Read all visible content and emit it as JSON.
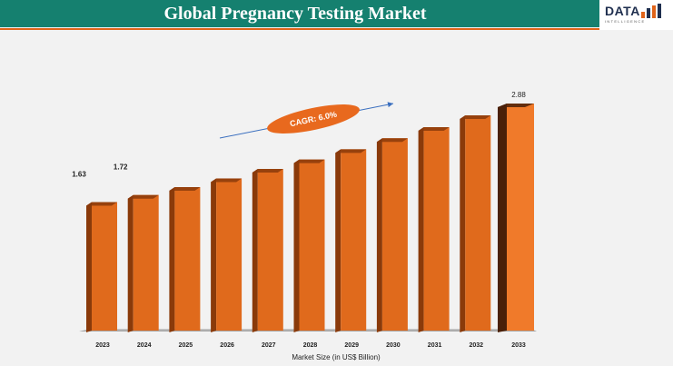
{
  "header": {
    "title": "Global Pregnancy Testing Market"
  },
  "logo": {
    "text": "DATA",
    "subtext": "INTELLIGENCE"
  },
  "annotation": {
    "cagr": "CAGR: 6.0%"
  },
  "colors": {
    "header_bg": "#15806f",
    "accent_line": "#e0641a",
    "bar_front": "#e06a1c",
    "bar_side": "#8a3a0a",
    "bar_dark_front": "#f07a2a",
    "bar_dark_side": "#4a2008",
    "floor": "#b3b3b3"
  },
  "chart_data": {
    "type": "bar",
    "title": "Global Pregnancy Testing Market",
    "xlabel": "Market Size (in US$ Billion)",
    "ylabel": "",
    "categories": [
      "2023",
      "2024",
      "2025",
      "2026",
      "2027",
      "2028",
      "2029",
      "2030",
      "2031",
      "2032",
      "2033"
    ],
    "values": [
      1.63,
      1.72,
      1.82,
      1.93,
      2.05,
      2.17,
      2.3,
      2.44,
      2.58,
      2.73,
      2.88
    ],
    "data_labels": {
      "0": "1.63",
      "1": "1.72",
      "10": "2.88"
    },
    "ylim": [
      0,
      2.88
    ],
    "grid": false,
    "legend": "none"
  }
}
